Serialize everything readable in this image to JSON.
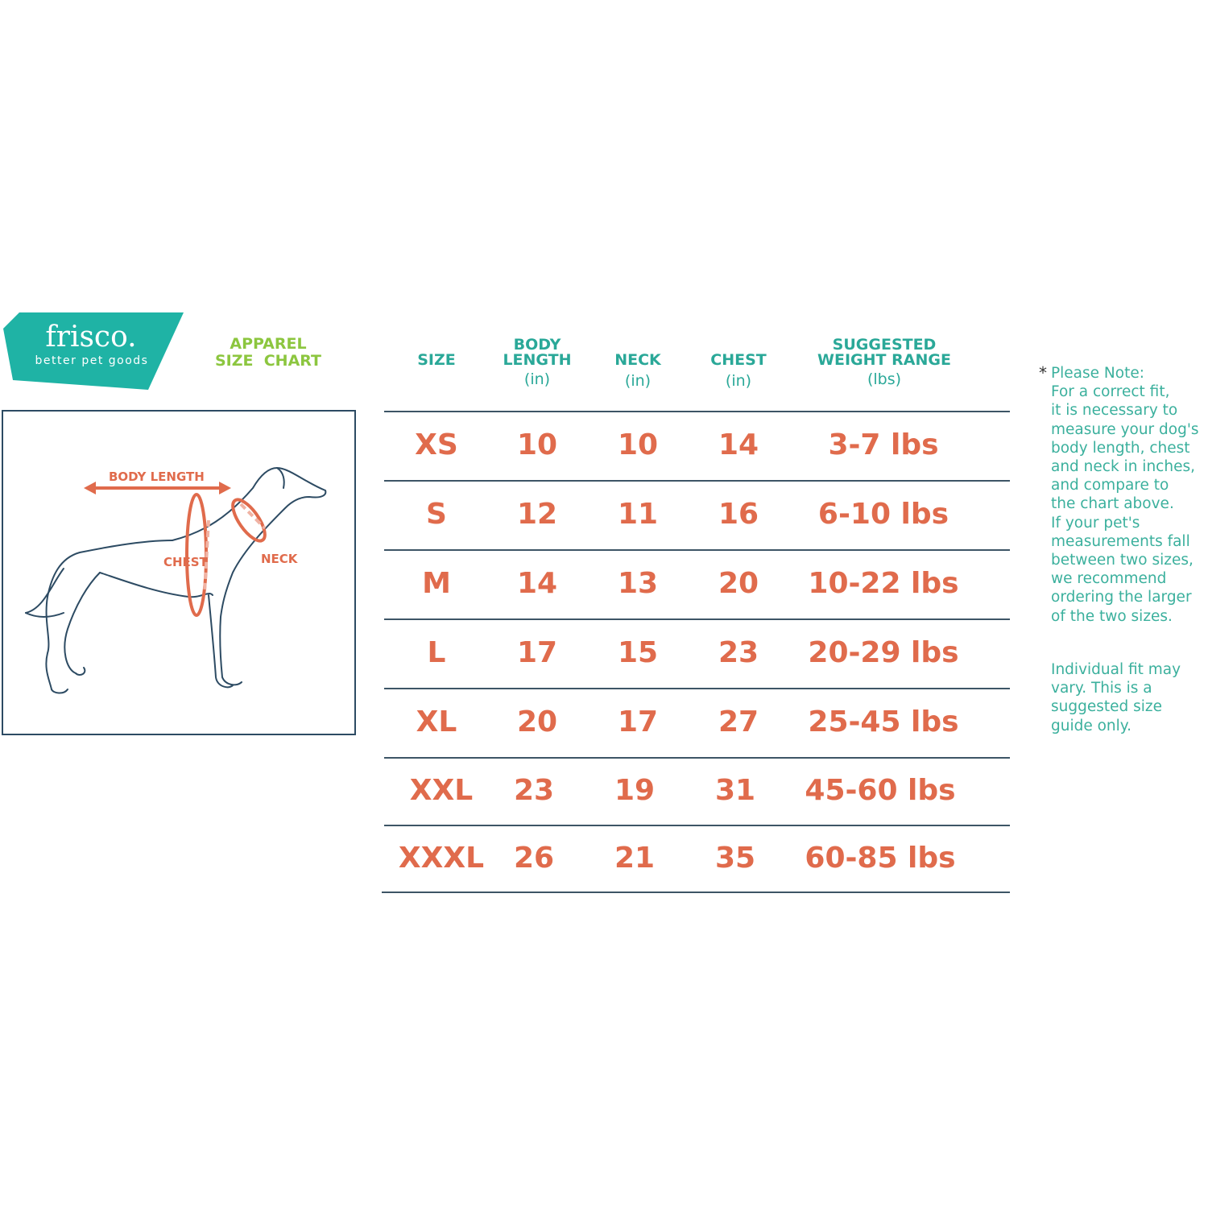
{
  "brand": {
    "name": "frisco.",
    "tagline": "better pet goods",
    "color": "#1fb3a5"
  },
  "title": {
    "line1": "APPAREL",
    "line2": "SIZE  CHART",
    "color": "#8cc63f"
  },
  "diagram": {
    "labels": {
      "body_length": "BODY LENGTH",
      "chest": "CHEST",
      "neck": "NECK"
    },
    "arrow_color": "#e06b4c",
    "outline_color": "#2d4b63"
  },
  "table": {
    "headers": [
      {
        "label": "SIZE",
        "unit": ""
      },
      {
        "label": "BODY LENGTH",
        "unit": "(in)"
      },
      {
        "label": "NECK",
        "unit": "(in)"
      },
      {
        "label": "CHEST",
        "unit": "(in)"
      },
      {
        "label": "SUGGESTED WEIGHT RANGE",
        "unit": "(lbs)"
      }
    ],
    "header_color": "#2aa898",
    "value_color": "#e06b4c",
    "rows": [
      [
        "XS",
        "10",
        "10",
        "14",
        "3-7 lbs"
      ],
      [
        "S",
        "12",
        "11",
        "16",
        "6-10 lbs"
      ],
      [
        "M",
        "14",
        "13",
        "20",
        "10-22 lbs"
      ],
      [
        "L",
        "17",
        "15",
        "23",
        "20-29 lbs"
      ],
      [
        "XL",
        "20",
        "17",
        "27",
        "25-45 lbs"
      ],
      [
        "XXL",
        "23",
        "19",
        "31",
        "45-60 lbs"
      ],
      [
        "XXXL",
        "26",
        "21",
        "35",
        "60-85 lbs"
      ]
    ]
  },
  "note": {
    "star": "*",
    "lines": [
      "Please Note:",
      "For a correct fit,",
      "it is necessary to",
      "measure your dog's",
      "body length, chest",
      "and neck in inches,",
      "and compare to",
      "the chart above.",
      "If your pet's",
      "measurements fall",
      "between two sizes,",
      "we recommend",
      "ordering the larger",
      "of the two sizes."
    ],
    "disclaimer": [
      "Individual fit may",
      "vary. This is a",
      "suggested size",
      "guide only."
    ]
  }
}
